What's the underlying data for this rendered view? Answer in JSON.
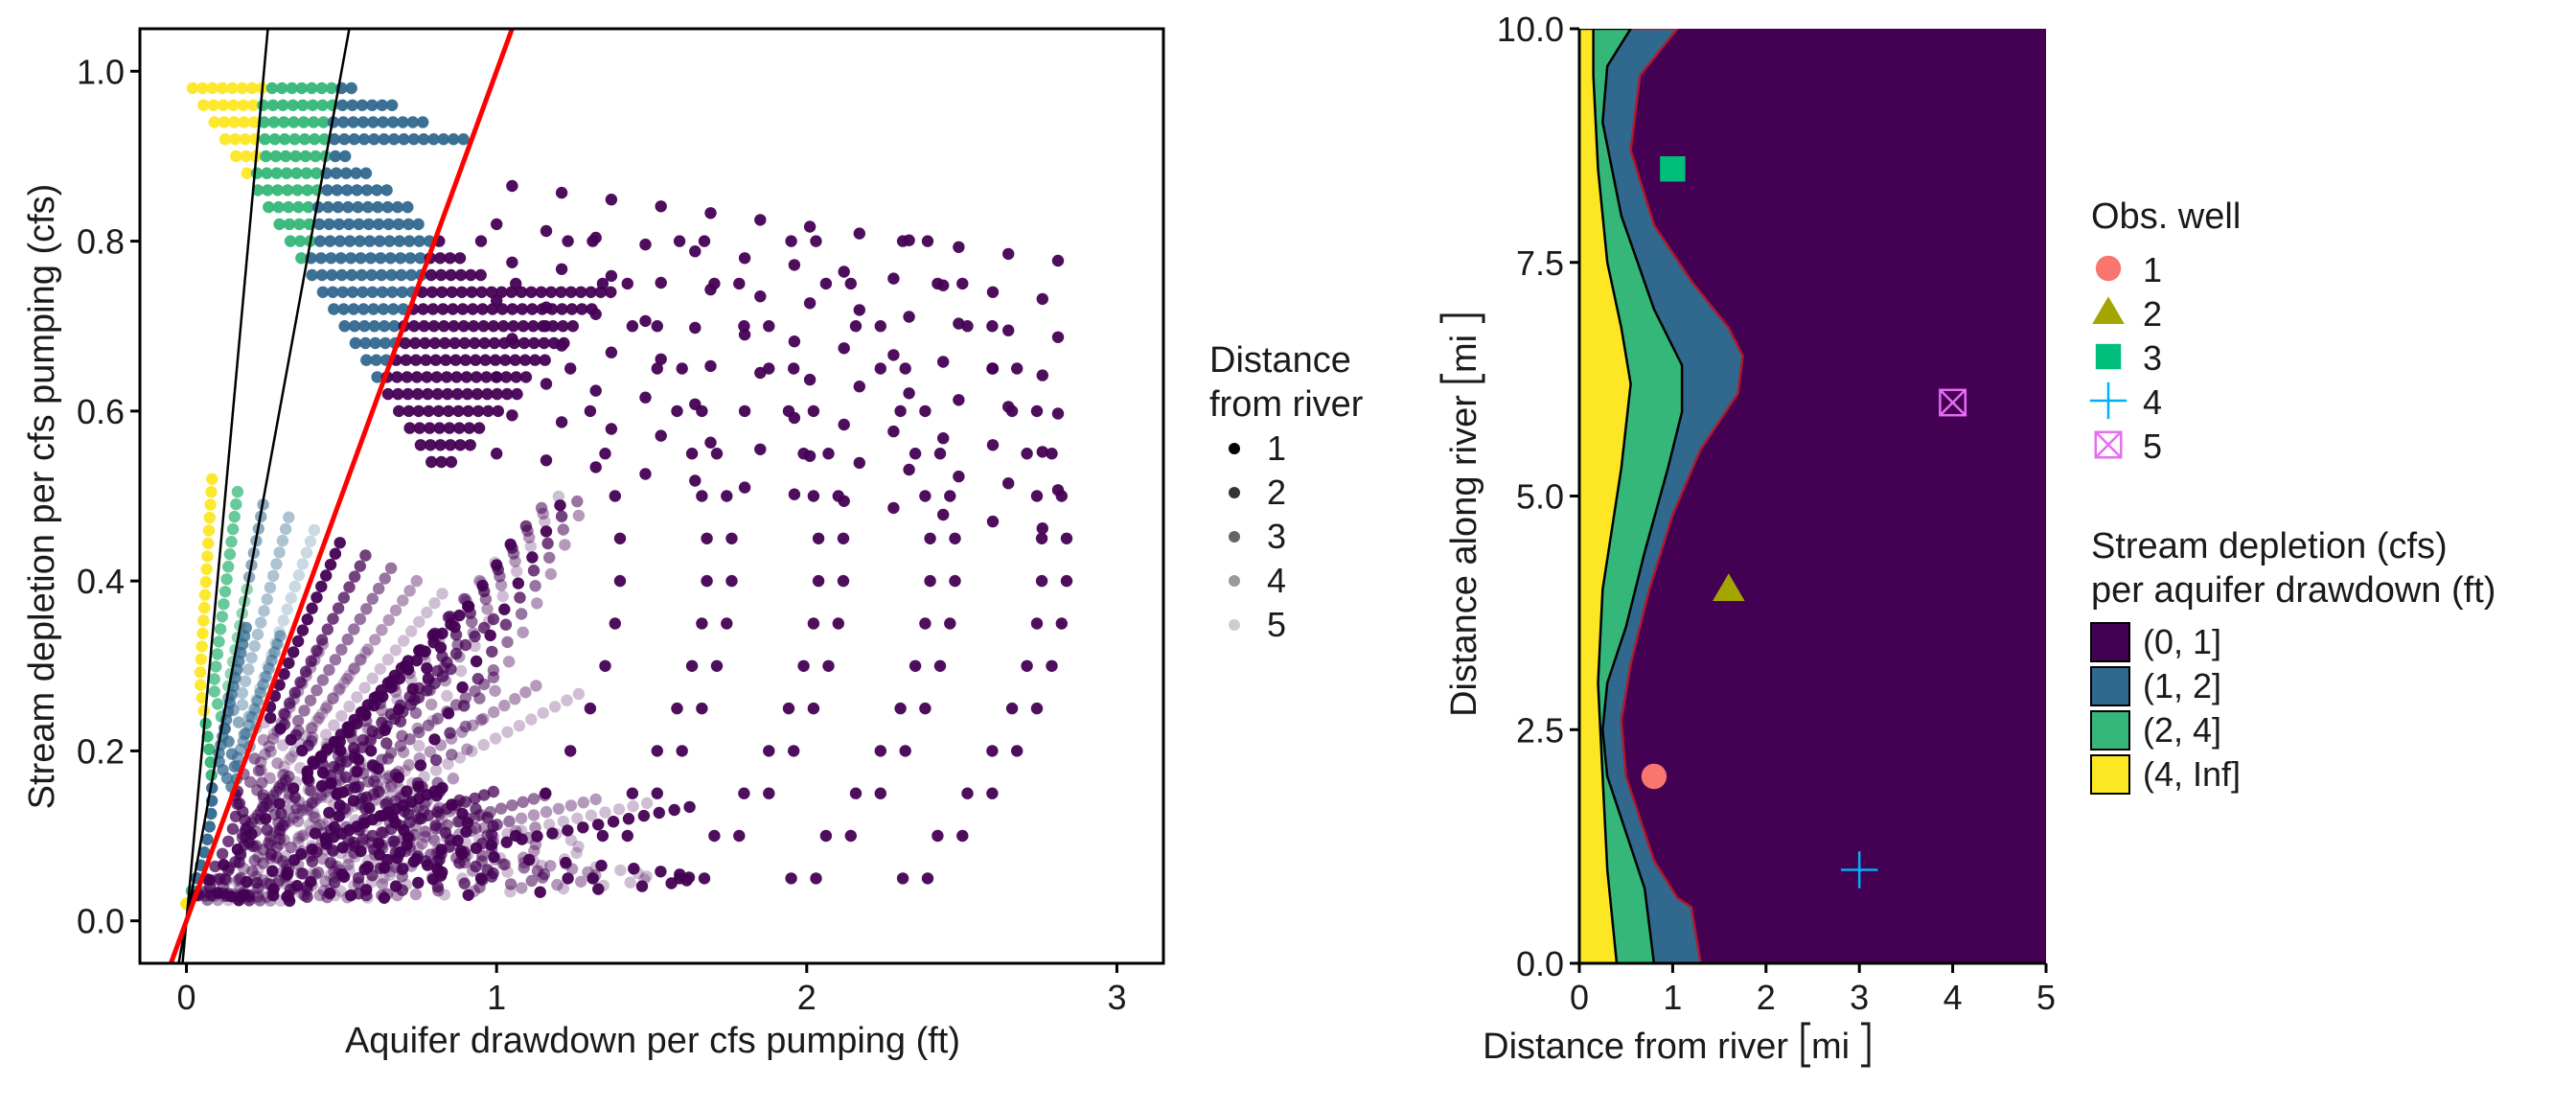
{
  "colors": {
    "purple": "#440154",
    "blue": "#31688e",
    "green": "#35b779",
    "yellow": "#fde725",
    "red_line": "#ff0000",
    "boundary": "#b2182b",
    "well1": "#f8766d",
    "well2": "#a3a500",
    "well3": "#00bf7d",
    "well4": "#00b0f6",
    "well5": "#e76bf3"
  },
  "chart_data": [
    {
      "type": "scatter",
      "xlabel": "Aquifer drawdown per cfs pumping (ft)",
      "ylabel": "Stream depletion per cfs pumping (cfs)",
      "xlim": [
        -0.15,
        3.15
      ],
      "ylim": [
        -0.05,
        1.05
      ],
      "x_ticks": [
        "0",
        "1",
        "2",
        "3"
      ],
      "x_tick_values": [
        0,
        1,
        2,
        3
      ],
      "y_ticks": [
        "0.0",
        "0.2",
        "0.4",
        "0.6",
        "0.8",
        "1.0"
      ],
      "y_tick_values": [
        0,
        0.2,
        0.4,
        0.6,
        0.8,
        1.0
      ],
      "grid": false,
      "legend": {
        "title_lines": [
          "Distance",
          "from river"
        ],
        "labels": [
          "1",
          "2",
          "3",
          "4",
          "5"
        ],
        "alphas": [
          1.0,
          0.8,
          0.6,
          0.4,
          0.2
        ],
        "placement": "right"
      },
      "reference_lines": [
        {
          "slope": 4,
          "color": "#000000"
        },
        {
          "slope": 2,
          "color": "#000000"
        },
        {
          "slope": 1,
          "color": "#ff0000"
        }
      ],
      "color_bands": [
        {
          "min_ratio": 4,
          "max_ratio": 1000,
          "color": "#fde725"
        },
        {
          "min_ratio": 2,
          "max_ratio": 4,
          "color": "#35b779"
        },
        {
          "min_ratio": 1,
          "max_ratio": 2,
          "color": "#31688e"
        },
        {
          "min_ratio": 0,
          "max_ratio": 1,
          "color": "#440154"
        }
      ],
      "series": [
        {
          "curve_peaks": [
            0.15,
            0.3,
            0.45,
            0.6,
            0.75,
            0.9,
            1.05,
            1.2,
            1.35,
            1.5,
            1.65,
            1.8
          ]
        },
        {
          "curve_peaks": [
            0.35,
            0.55,
            0.8,
            1.05,
            1.3,
            1.55,
            1.8,
            2.05,
            2.3
          ]
        },
        {
          "curve_peaks": [
            0.6,
            0.9,
            1.2,
            1.5,
            1.8,
            2.1,
            2.4,
            2.7,
            2.95
          ]
        }
      ],
      "upper_region": {
        "x_max_by_y": [
          [
            0.46,
            0.5
          ],
          [
            0.55,
            0.55
          ],
          [
            0.7,
            0.75
          ],
          [
            0.8,
            1.6
          ],
          [
            0.9,
            1.4
          ],
          [
            0.95,
            0.85
          ]
        ],
        "y_max": 0.98
      }
    },
    {
      "type": "heatmap",
      "xlabel": "Distance from river",
      "xlabel_unit": "mi",
      "ylabel": "Distance along river",
      "ylabel_unit": "mi",
      "xlim": [
        0,
        5
      ],
      "ylim": [
        0,
        10
      ],
      "x_ticks": [
        "0",
        "1",
        "2",
        "3",
        "4",
        "5"
      ],
      "x_tick_values": [
        0,
        1,
        2,
        3,
        4,
        5
      ],
      "y_ticks": [
        "0.0",
        "2.5",
        "5.0",
        "7.5",
        "10.0"
      ],
      "y_tick_values": [
        0,
        2.5,
        5,
        7.5,
        10
      ],
      "grid": false,
      "contours": [
        {
          "name": "(0, 1]",
          "color": "#440154"
        },
        {
          "name": "(1, 2]",
          "color": "#31688e",
          "boundary": [
            [
              1.3,
              0
            ],
            [
              1.2,
              0.6
            ],
            [
              1.05,
              0.7
            ],
            [
              0.8,
              1.1
            ],
            [
              0.5,
              2.0
            ],
            [
              0.45,
              2.6
            ],
            [
              0.55,
              3.2
            ],
            [
              0.75,
              4.0
            ],
            [
              1.0,
              4.8
            ],
            [
              1.3,
              5.5
            ],
            [
              1.7,
              6.1
            ],
            [
              1.75,
              6.5
            ],
            [
              1.6,
              6.8
            ],
            [
              1.2,
              7.3
            ],
            [
              0.8,
              7.9
            ],
            [
              0.55,
              8.7
            ],
            [
              0.65,
              9.5
            ],
            [
              1.05,
              10
            ]
          ]
        },
        {
          "name": "(2, 4]",
          "color": "#35b779",
          "boundary": [
            [
              0.8,
              0
            ],
            [
              0.7,
              0.8
            ],
            [
              0.5,
              1.4
            ],
            [
              0.3,
              2.0
            ],
            [
              0.25,
              2.5
            ],
            [
              0.3,
              3.0
            ],
            [
              0.5,
              3.6
            ],
            [
              0.7,
              4.4
            ],
            [
              0.95,
              5.3
            ],
            [
              1.1,
              5.9
            ],
            [
              1.1,
              6.4
            ],
            [
              0.8,
              7.0
            ],
            [
              0.45,
              8.0
            ],
            [
              0.25,
              9.0
            ],
            [
              0.3,
              9.6
            ],
            [
              0.55,
              10
            ]
          ]
        },
        {
          "name": "(4, Inf]",
          "color": "#fde725",
          "boundary": [
            [
              0.4,
              0
            ],
            [
              0.3,
              1.0
            ],
            [
              0.25,
              2.0
            ],
            [
              0.2,
              3.0
            ],
            [
              0.25,
              4.0
            ],
            [
              0.45,
              5.3
            ],
            [
              0.55,
              6.2
            ],
            [
              0.45,
              6.8
            ],
            [
              0.3,
              7.5
            ],
            [
              0.2,
              8.5
            ],
            [
              0.15,
              9.5
            ],
            [
              0.15,
              10
            ]
          ]
        }
      ],
      "wells": [
        {
          "label": "1",
          "x": 0.8,
          "y": 2.0,
          "shape": "circle",
          "color": "#f8766d"
        },
        {
          "label": "2",
          "x": 1.6,
          "y": 4.0,
          "shape": "triangle",
          "color": "#a3a500"
        },
        {
          "label": "3",
          "x": 1.0,
          "y": 8.5,
          "shape": "square",
          "color": "#00bf7d"
        },
        {
          "label": "4",
          "x": 3.0,
          "y": 1.0,
          "shape": "plus",
          "color": "#00b0f6"
        },
        {
          "label": "5",
          "x": 4.0,
          "y": 6.0,
          "shape": "boxcross",
          "color": "#e76bf3"
        }
      ],
      "legend_wells_title": "Obs. well",
      "legend_fill_title_lines": [
        "Stream depletion (cfs)",
        "per aquifer drawdown (ft)"
      ],
      "legend_fill_labels": [
        "(0, 1]",
        "(1, 2]",
        "(2, 4]",
        "(4, Inf]"
      ],
      "legend_fill_colors": [
        "#440154",
        "#31688e",
        "#35b779",
        "#fde725"
      ]
    }
  ]
}
